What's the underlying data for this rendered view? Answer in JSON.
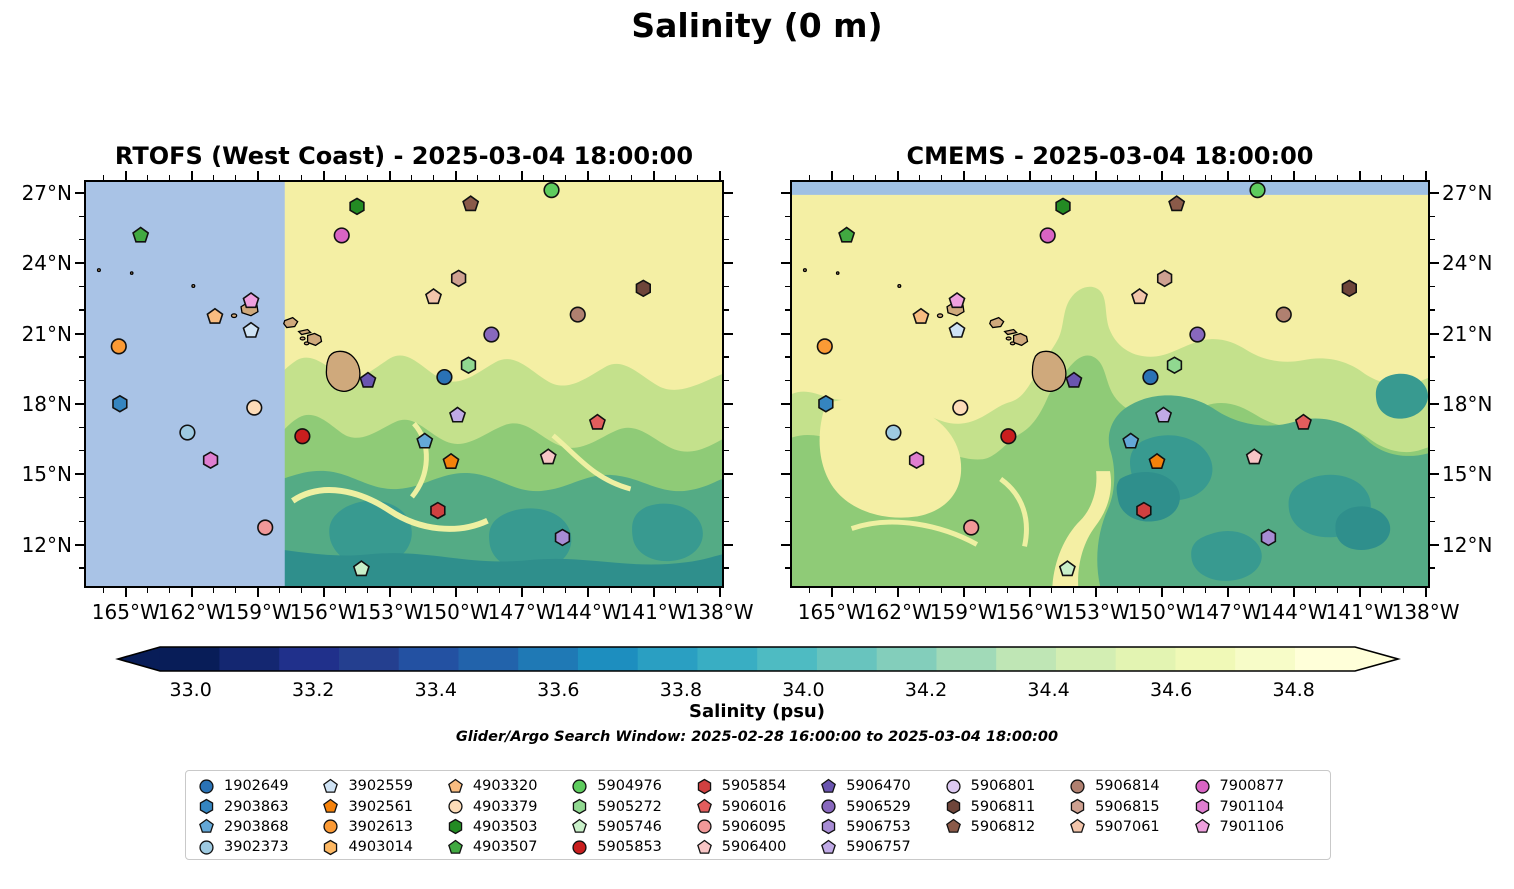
{
  "suptitle": "Salinity (0 m)",
  "panels": [
    {
      "key": "left",
      "title": "RTOFS (West Coast) - 2025-03-04 18:00:00"
    },
    {
      "key": "right",
      "title": "CMEMS - 2025-03-04 18:00:00"
    }
  ],
  "axes": {
    "lon_ticks_deg_w": [
      165,
      162,
      159,
      156,
      153,
      150,
      147,
      144,
      141,
      138
    ],
    "lon_tick_suffix": "°W",
    "lat_ticks_deg_n": [
      27,
      24,
      21,
      18,
      15,
      12
    ],
    "lat_tick_suffix": "°N",
    "lon_range_w": [
      166.9,
      137.8
    ],
    "lat_range_n": [
      27.55,
      10.15
    ],
    "minor_step_deg": 1
  },
  "colorbar": {
    "label": "Salinity (psu)",
    "ticks": [
      "33.0",
      "33.2",
      "33.4",
      "33.6",
      "33.8",
      "34.0",
      "34.2",
      "34.4",
      "34.6",
      "34.8"
    ],
    "tick_values": [
      33.0,
      33.2,
      33.4,
      33.6,
      33.8,
      34.0,
      34.2,
      34.4,
      34.6,
      34.8
    ],
    "range": [
      32.95,
      34.9
    ],
    "segment_colors": [
      "#081d58",
      "#142771",
      "#20308b",
      "#243f8f",
      "#2351a2",
      "#2263ab",
      "#1f79b5",
      "#1d8ebf",
      "#2a9fc2",
      "#39aec3",
      "#4ebbc2",
      "#68c4be",
      "#83cebb",
      "#a1dab8",
      "#bfe6b5",
      "#d3eeb3",
      "#e3f4b2",
      "#f0f9b7",
      "#f7fcc8",
      "#ffffd9"
    ],
    "left_arrow_color": "#081d58",
    "right_arrow_color": "#ffffd9"
  },
  "search_window": "Glider/Argo Search Window: 2025-02-28 16:00:00 to 2025-03-04 18:00:00",
  "map_colors": {
    "base_yellow": "#f4efa4",
    "light_green": "#c4e18c",
    "green": "#8fcb77",
    "teal_green": "#54ab85",
    "teal": "#389a90",
    "dark_teal": "#2f8f8c",
    "filament": "#eef0a2",
    "no_data_mask": "#a9c3e6",
    "top_stripe": "#9fc0e3",
    "land": "#cfa97c"
  },
  "chart_data": {
    "type": "heatmap",
    "title": "Salinity (0 m)",
    "subplots": [
      "RTOFS (West Coast) - 2025-03-04 18:00:00",
      "CMEMS - 2025-03-04 18:00:00"
    ],
    "colorbar_label": "Salinity (psu)",
    "colorbar_ticks": [
      33.0,
      33.2,
      33.4,
      33.6,
      33.8,
      34.0,
      34.2,
      34.4,
      34.6,
      34.8
    ],
    "lon_ticks_w": [
      165,
      162,
      159,
      156,
      153,
      150,
      147,
      144,
      141,
      138
    ],
    "lat_ticks_n": [
      27,
      24,
      21,
      18,
      15,
      12
    ],
    "note": "Glider/Argo Search Window: 2025-02-28 16:00:00 to 2025-03-04 18:00:00"
  },
  "floats": [
    {
      "id": "1902649",
      "shape": "circle",
      "color": "#2a72b5",
      "lon_w": 150.5,
      "lat_n": 19.15
    },
    {
      "id": "2903863",
      "shape": "hexagon",
      "color": "#3585c0",
      "lon_w": 165.35,
      "lat_n": 18.0
    },
    {
      "id": "2903868",
      "shape": "pentagon",
      "color": "#64a8d8",
      "lon_w": 151.4,
      "lat_n": 16.38
    },
    {
      "id": "3902373",
      "shape": "circle",
      "color": "#9ecae1",
      "lon_w": 162.26,
      "lat_n": 16.76
    },
    {
      "id": "3902559",
      "shape": "pentagon",
      "color": "#cfe3f5",
      "lon_w": 159.35,
      "lat_n": 21.15
    },
    {
      "id": "3902561",
      "shape": "pentagon",
      "color": "#f5820b",
      "lon_w": 150.2,
      "lat_n": 15.5
    },
    {
      "id": "3902613",
      "shape": "circle",
      "color": "#fb9a35",
      "lon_w": 165.4,
      "lat_n": 20.47
    },
    {
      "id": "4903014",
      "shape": "hexagon",
      "color": "#fdb863",
      "lon_w": null,
      "lat_n": null
    },
    {
      "id": "4903320",
      "shape": "pentagon",
      "color": "#f8bc80",
      "lon_w": 161.0,
      "lat_n": 21.75
    },
    {
      "id": "4903379",
      "shape": "circle",
      "color": "#fddcb8",
      "lon_w": 159.2,
      "lat_n": 17.83
    },
    {
      "id": "4903503",
      "shape": "hexagon",
      "color": "#238b23",
      "lon_w": 154.5,
      "lat_n": 26.5
    },
    {
      "id": "4903507",
      "shape": "pentagon",
      "color": "#41a941",
      "lon_w": 164.4,
      "lat_n": 25.25
    },
    {
      "id": "5904976",
      "shape": "circle",
      "color": "#5ecc5e",
      "lon_w": 145.6,
      "lat_n": 27.2
    },
    {
      "id": "5905272",
      "shape": "hexagon",
      "color": "#90d890",
      "lon_w": 149.4,
      "lat_n": 19.66
    },
    {
      "id": "5905746",
      "shape": "pentagon",
      "color": "#c9f0c9",
      "lon_w": 154.3,
      "lat_n": 10.88
    },
    {
      "id": "5905853",
      "shape": "circle",
      "color": "#c91e1e",
      "lon_w": 157.0,
      "lat_n": 16.6
    },
    {
      "id": "5905854",
      "shape": "hexagon",
      "color": "#d04040",
      "lon_w": 150.8,
      "lat_n": 13.4
    },
    {
      "id": "5906016",
      "shape": "pentagon",
      "color": "#e25d5d",
      "lon_w": 143.5,
      "lat_n": 17.19
    },
    {
      "id": "5906095",
      "shape": "circle",
      "color": "#f09898",
      "lon_w": 158.7,
      "lat_n": 12.67
    },
    {
      "id": "5906400",
      "shape": "pentagon",
      "color": "#f8c6c6",
      "lon_w": 145.75,
      "lat_n": 15.7
    },
    {
      "id": "5906470",
      "shape": "pentagon",
      "color": "#6a55b0",
      "lon_w": 154.0,
      "lat_n": 19.0
    },
    {
      "id": "5906529",
      "shape": "circle",
      "color": "#8868bd",
      "lon_w": 148.35,
      "lat_n": 20.98
    },
    {
      "id": "5906753",
      "shape": "hexagon",
      "color": "#a78cd4",
      "lon_w": 145.1,
      "lat_n": 12.24
    },
    {
      "id": "5906757",
      "shape": "pentagon",
      "color": "#c0aae6",
      "lon_w": 149.9,
      "lat_n": 17.5
    },
    {
      "id": "5906801",
      "shape": "circle",
      "color": "#ddcaf2",
      "lon_w": null,
      "lat_n": null
    },
    {
      "id": "5906811",
      "shape": "hexagon",
      "color": "#6e453a",
      "lon_w": 141.4,
      "lat_n": 22.97
    },
    {
      "id": "5906812",
      "shape": "pentagon",
      "color": "#8a5a49",
      "lon_w": 149.3,
      "lat_n": 26.6
    },
    {
      "id": "5906814",
      "shape": "circle",
      "color": "#b08070",
      "lon_w": 144.4,
      "lat_n": 21.84
    },
    {
      "id": "5906815",
      "shape": "hexagon",
      "color": "#cfa191",
      "lon_w": 149.85,
      "lat_n": 23.4
    },
    {
      "id": "5907061",
      "shape": "pentagon",
      "color": "#f3c5ab",
      "lon_w": 151.0,
      "lat_n": 22.6
    },
    {
      "id": "7900877",
      "shape": "circle",
      "color": "#d964c4",
      "lon_w": 155.2,
      "lat_n": 25.25
    },
    {
      "id": "7901104",
      "shape": "hexagon",
      "color": "#df7ed0",
      "lon_w": 161.2,
      "lat_n": 15.57
    },
    {
      "id": "7901106",
      "shape": "pentagon",
      "color": "#efa0de",
      "lon_w": 159.35,
      "lat_n": 22.43
    }
  ],
  "legend_columns": [
    4,
    4,
    4,
    4,
    4,
    4,
    3,
    3,
    3
  ]
}
